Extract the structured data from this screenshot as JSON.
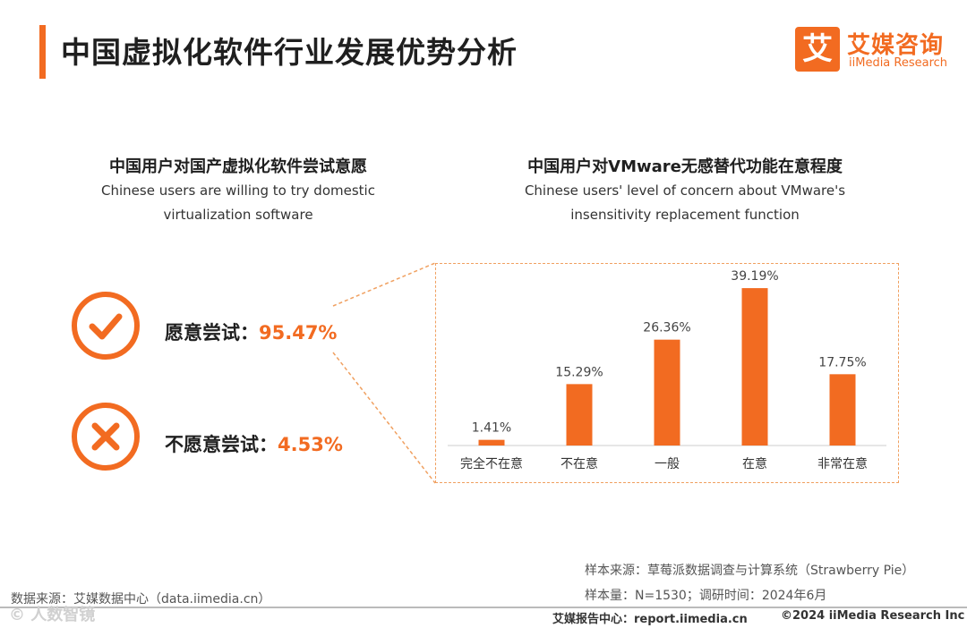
{
  "header": {
    "title": "中国虚拟化软件行业发展优势分析",
    "logo_mark": "艾",
    "logo_cn": "艾媒咨询",
    "logo_en": "iiMedia Research"
  },
  "left_section": {
    "title_cn": "中国用户对国产虚拟化软件尝试意愿",
    "subtitle_en": "Chinese users are willing to try domestic virtualization software",
    "options": [
      {
        "label": "愿意尝试：",
        "value": "95.47%",
        "icon": "check-icon"
      },
      {
        "label": "不愿意尝试：",
        "value": "4.53%",
        "icon": "cross-icon"
      }
    ]
  },
  "right_section": {
    "title_cn": "中国用户对VMware无感替代功能在意程度",
    "subtitle_en": "Chinese users' level of concern about VMware's insensitivity replacement function"
  },
  "chart_data": {
    "type": "bar",
    "categories": [
      "完全不在意",
      "不在意",
      "一般",
      "在意",
      "非常在意"
    ],
    "values": [
      1.41,
      15.29,
      26.36,
      39.19,
      17.75
    ],
    "data_labels": [
      "1.41%",
      "15.29%",
      "26.36%",
      "39.19%",
      "17.75%"
    ],
    "unit": "%",
    "bar_color": "#f26b21",
    "ylim": [
      0,
      45
    ],
    "grid": false,
    "legend": "none"
  },
  "footer": {
    "sample_source": "样本来源：草莓派数据调查与计算系统（Strawberry Pie）",
    "sample_size": "样本量：N=1530；调研时间：2024年6月",
    "data_source": "数据来源：艾媒数据中心（data.iimedia.cn）",
    "report_center": "艾媒报告中心：report.iimedia.cn",
    "copyright": "©2024  iiMedia Research  Inc",
    "watermark": "© 人数智镜"
  },
  "colors": {
    "accent": "#f26b21"
  }
}
